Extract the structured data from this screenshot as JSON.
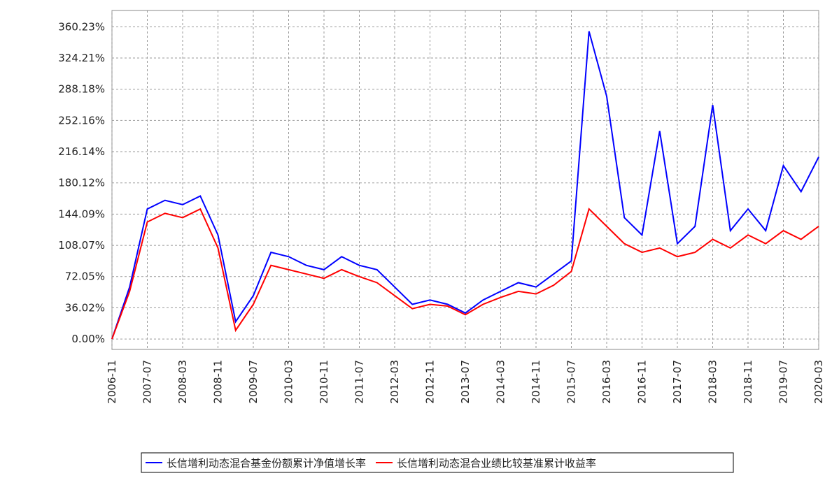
{
  "chart_data": {
    "type": "line",
    "categories": [
      "2006-11",
      null,
      "2007-07",
      null,
      "2008-03",
      null,
      "2008-11",
      null,
      "2009-07",
      null,
      "2010-03",
      null,
      "2010-11",
      null,
      "2011-07",
      null,
      "2012-03",
      null,
      "2012-11",
      null,
      "2013-07",
      null,
      "2014-03",
      null,
      "2014-11",
      null,
      "2015-07",
      null,
      "2016-03",
      null,
      "2016-11",
      null,
      "2017-07",
      null,
      "2018-03",
      null,
      "2018-11",
      null,
      "2019-07",
      null,
      "2020-03"
    ],
    "series": [
      {
        "name": "长信增利动态混合基金份额累计净值增长率",
        "color": "#0000ff",
        "values": [
          0,
          60,
          150,
          160,
          155,
          165,
          120,
          20,
          50,
          100,
          95,
          85,
          80,
          95,
          85,
          80,
          60,
          40,
          45,
          40,
          30,
          45,
          55,
          65,
          60,
          75,
          90,
          355,
          280,
          140,
          120,
          240,
          110,
          130,
          270,
          125,
          150,
          125,
          200,
          170,
          210
        ]
      },
      {
        "name": "长信增利动态混合业绩比较基准累计收益率",
        "color": "#ff0000",
        "values": [
          0,
          55,
          135,
          145,
          140,
          150,
          105,
          10,
          40,
          85,
          80,
          75,
          70,
          80,
          72,
          65,
          50,
          35,
          40,
          38,
          28,
          40,
          48,
          55,
          52,
          62,
          78,
          150,
          130,
          110,
          100,
          105,
          95,
          100,
          115,
          105,
          120,
          110,
          125,
          115,
          130
        ]
      }
    ],
    "ylim": [
      -12,
      379
    ],
    "yticks": [
      {
        "value": 0,
        "label": "0.00%"
      },
      {
        "value": 36.02,
        "label": "36.02%"
      },
      {
        "value": 72.05,
        "label": "72.05%"
      },
      {
        "value": 108.07,
        "label": "108.07%"
      },
      {
        "value": 144.09,
        "label": "144.09%"
      },
      {
        "value": 180.12,
        "label": "180.12%"
      },
      {
        "value": 216.14,
        "label": "216.14%"
      },
      {
        "value": 252.16,
        "label": "252.16%"
      },
      {
        "value": 288.18,
        "label": "288.18%"
      },
      {
        "value": 324.21,
        "label": "324.21%"
      },
      {
        "value": 360.23,
        "label": "360.23%"
      }
    ],
    "grid": true
  }
}
